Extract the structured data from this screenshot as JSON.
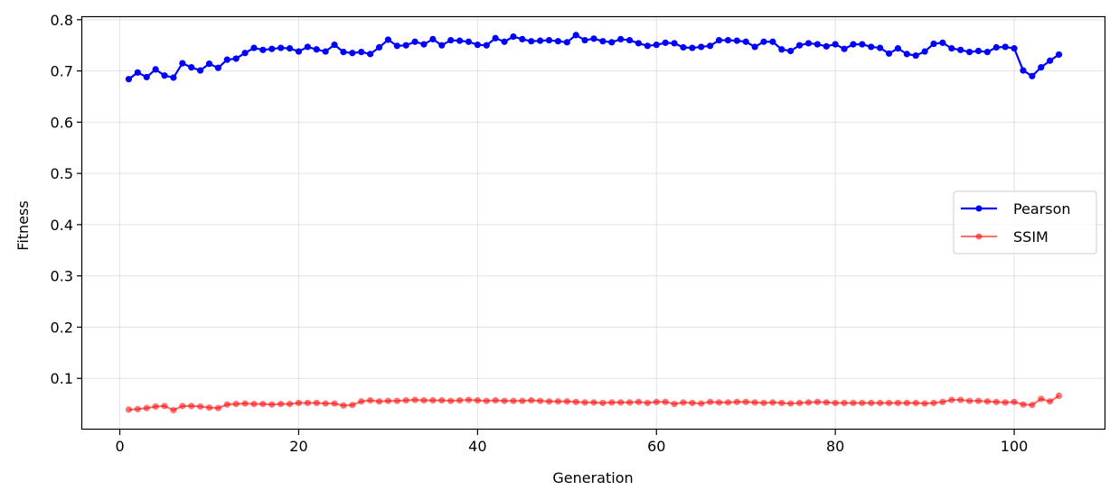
{
  "chart_data": {
    "type": "line",
    "xlabel": "Generation",
    "ylabel": "Fitness",
    "xlim": [
      -4.2,
      110.2
    ],
    "ylim": [
      0.0,
      0.805
    ],
    "xticks": [
      "0",
      "20",
      "40",
      "60",
      "80",
      "100"
    ],
    "yticks": [
      "0.1",
      "0.2",
      "0.3",
      "0.4",
      "0.5",
      "0.6",
      "0.7",
      "0.8"
    ],
    "grid": true,
    "legend_position": "center-right",
    "series": [
      {
        "name": "Pearson",
        "color": "#0000ff",
        "opacity": 1.0,
        "values": [
          0.684,
          0.697,
          0.688,
          0.703,
          0.691,
          0.687,
          0.715,
          0.707,
          0.701,
          0.714,
          0.706,
          0.722,
          0.724,
          0.735,
          0.745,
          0.741,
          0.743,
          0.745,
          0.744,
          0.738,
          0.747,
          0.742,
          0.738,
          0.751,
          0.737,
          0.735,
          0.737,
          0.733,
          0.746,
          0.761,
          0.749,
          0.75,
          0.757,
          0.752,
          0.762,
          0.75,
          0.76,
          0.759,
          0.757,
          0.751,
          0.75,
          0.764,
          0.757,
          0.767,
          0.762,
          0.758,
          0.759,
          0.76,
          0.758,
          0.756,
          0.77,
          0.76,
          0.763,
          0.758,
          0.756,
          0.762,
          0.76,
          0.754,
          0.749,
          0.751,
          0.755,
          0.754,
          0.746,
          0.745,
          0.747,
          0.749,
          0.76,
          0.76,
          0.759,
          0.757,
          0.747,
          0.757,
          0.757,
          0.742,
          0.739,
          0.75,
          0.754,
          0.752,
          0.748,
          0.752,
          0.743,
          0.752,
          0.752,
          0.747,
          0.745,
          0.734,
          0.744,
          0.733,
          0.73,
          0.738,
          0.753,
          0.755,
          0.744,
          0.741,
          0.737,
          0.739,
          0.737,
          0.746,
          0.747,
          0.744,
          0.701,
          0.69,
          0.707,
          0.72,
          0.732
        ]
      },
      {
        "name": "SSIM",
        "color": "#ff0000",
        "opacity": 0.55,
        "values": [
          0.039,
          0.04,
          0.042,
          0.045,
          0.046,
          0.038,
          0.046,
          0.046,
          0.045,
          0.043,
          0.042,
          0.049,
          0.05,
          0.051,
          0.05,
          0.05,
          0.049,
          0.05,
          0.05,
          0.052,
          0.052,
          0.052,
          0.051,
          0.051,
          0.047,
          0.048,
          0.055,
          0.057,
          0.055,
          0.056,
          0.056,
          0.057,
          0.058,
          0.057,
          0.057,
          0.057,
          0.056,
          0.057,
          0.058,
          0.057,
          0.056,
          0.057,
          0.056,
          0.056,
          0.056,
          0.057,
          0.056,
          0.055,
          0.055,
          0.055,
          0.054,
          0.053,
          0.053,
          0.052,
          0.053,
          0.053,
          0.053,
          0.054,
          0.052,
          0.054,
          0.054,
          0.05,
          0.053,
          0.052,
          0.051,
          0.054,
          0.053,
          0.053,
          0.054,
          0.054,
          0.053,
          0.052,
          0.053,
          0.052,
          0.051,
          0.052,
          0.053,
          0.054,
          0.053,
          0.052,
          0.052,
          0.052,
          0.052,
          0.052,
          0.052,
          0.052,
          0.052,
          0.052,
          0.052,
          0.051,
          0.052,
          0.054,
          0.058,
          0.058,
          0.056,
          0.056,
          0.055,
          0.054,
          0.053,
          0.054,
          0.049,
          0.048,
          0.06,
          0.055,
          0.066
        ]
      }
    ]
  }
}
